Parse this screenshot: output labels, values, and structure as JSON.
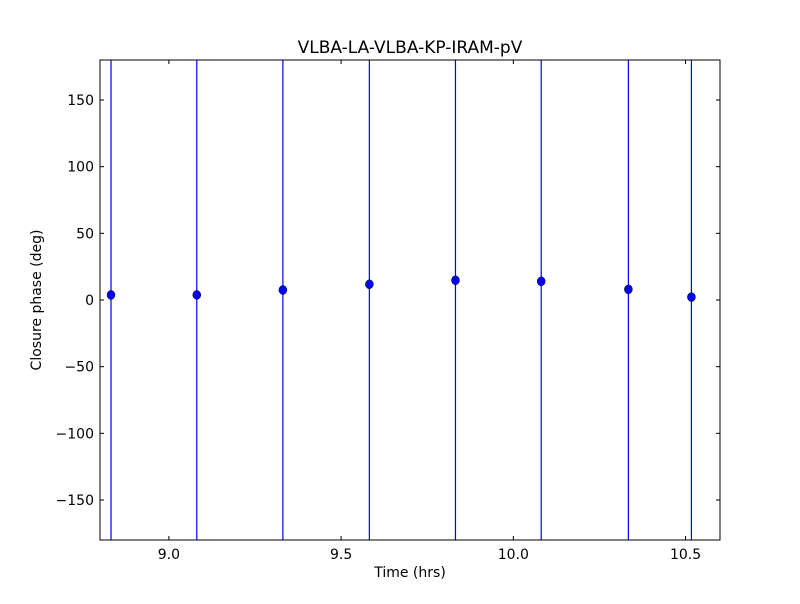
{
  "chart_data": {
    "type": "scatter",
    "title": "VLBA-LA-VLBA-KP-IRAM-pV",
    "xlabel": "Time (hrs)",
    "ylabel": "Closure phase (deg)",
    "xlim": [
      8.8,
      10.6
    ],
    "ylim": [
      -180,
      180
    ],
    "xticks": [
      9.0,
      9.5,
      10.0,
      10.5
    ],
    "xtick_labels": [
      "9.0",
      "9.5",
      "10.0",
      "10.5"
    ],
    "yticks": [
      -150,
      -100,
      -50,
      0,
      50,
      100,
      150
    ],
    "ytick_labels": [
      "−150",
      "−100",
      "−50",
      "0",
      "50",
      "100",
      "150"
    ],
    "grid": false,
    "marker_color": "#0000ff",
    "errorbar_color": "#0000ff",
    "points": [
      {
        "x": 8.832,
        "y": 3.8,
        "yerr": 200
      },
      {
        "x": 9.081,
        "y": 3.8,
        "yerr": 200
      },
      {
        "x": 9.331,
        "y": 7.5,
        "yerr": 200
      },
      {
        "x": 9.582,
        "y": 11.8,
        "yerr": 200
      },
      {
        "x": 9.832,
        "y": 14.8,
        "yerr": 200
      },
      {
        "x": 10.081,
        "y": 14.0,
        "yerr": 200
      },
      {
        "x": 10.334,
        "y": 8.0,
        "yerr": 200
      },
      {
        "x": 10.517,
        "y": 2.2,
        "yerr": 200
      }
    ]
  }
}
